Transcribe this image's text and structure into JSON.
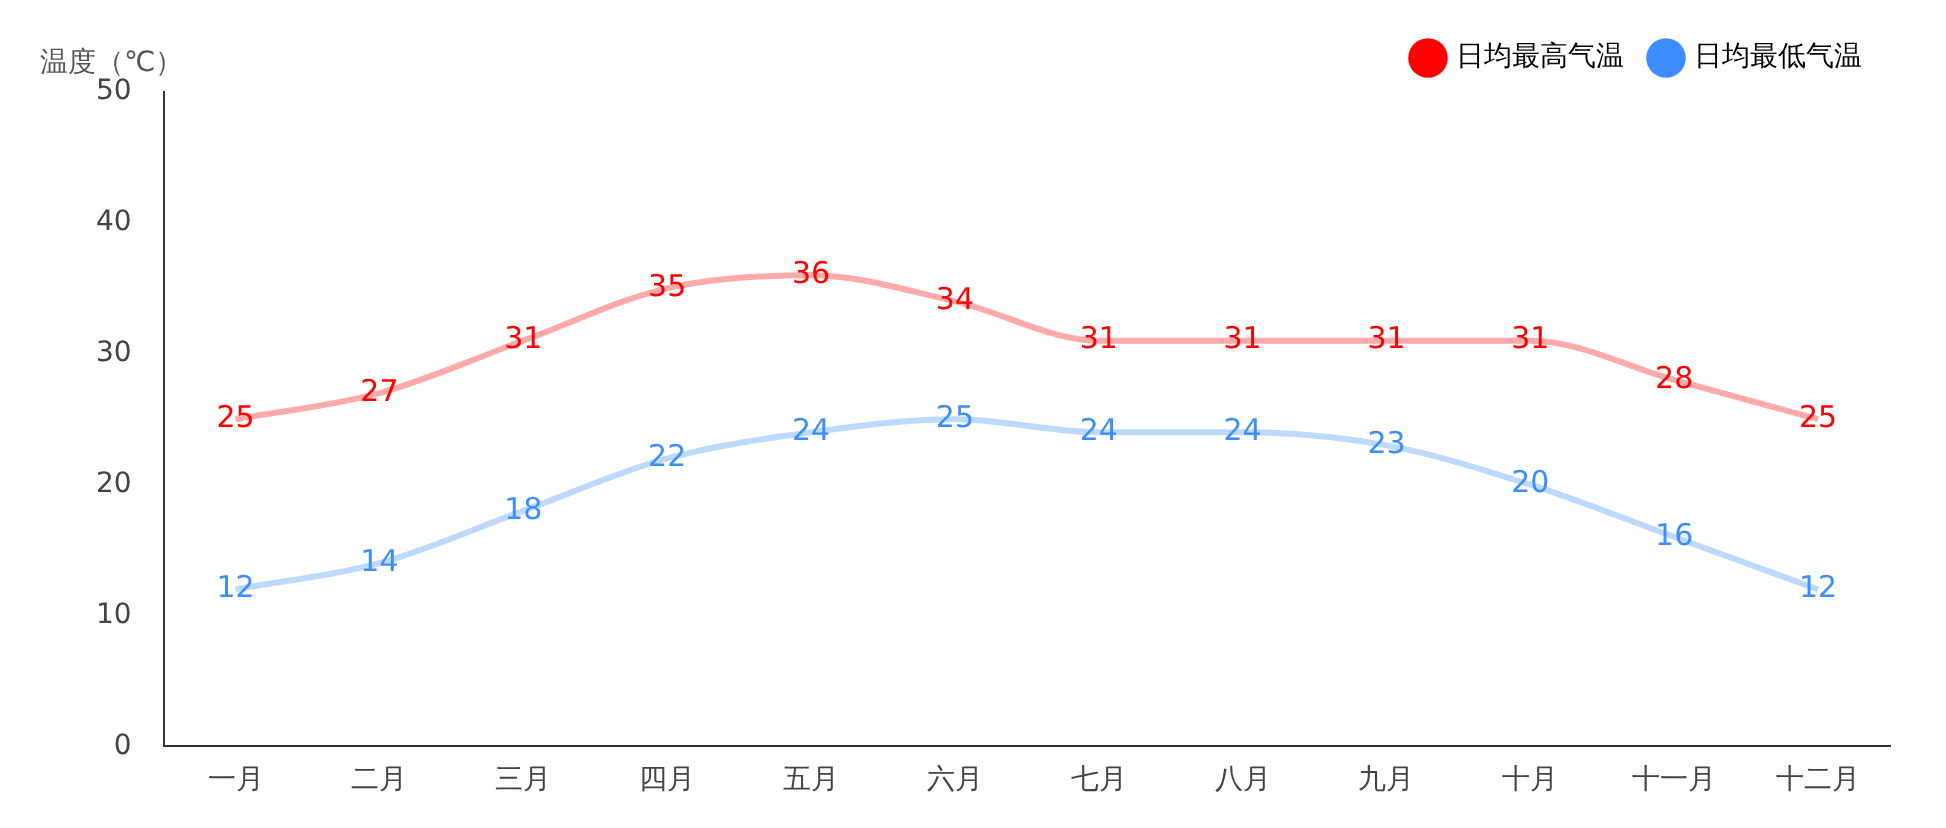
{
  "chart_data": {
    "type": "line",
    "ylabel": "温度（℃）",
    "categories": [
      "一月",
      "二月",
      "三月",
      "四月",
      "五月",
      "六月",
      "七月",
      "八月",
      "九月",
      "十月",
      "十一月",
      "十二月"
    ],
    "series": [
      {
        "name": "日均最高气温",
        "color": "#ff0000",
        "values": [
          25,
          27,
          31,
          35,
          36,
          34,
          31,
          31,
          31,
          31,
          28,
          25
        ]
      },
      {
        "name": "日均最低气温",
        "color": "#3c8eff",
        "values": [
          12,
          14,
          18,
          22,
          24,
          25,
          24,
          24,
          23,
          20,
          16,
          12
        ]
      }
    ],
    "ylim": [
      0,
      50
    ],
    "yticks": [
      0,
      10,
      20,
      30,
      40,
      50
    ],
    "grid": false,
    "legend": "top right",
    "marker": "none",
    "line_style": "solid",
    "data_labels": true
  }
}
